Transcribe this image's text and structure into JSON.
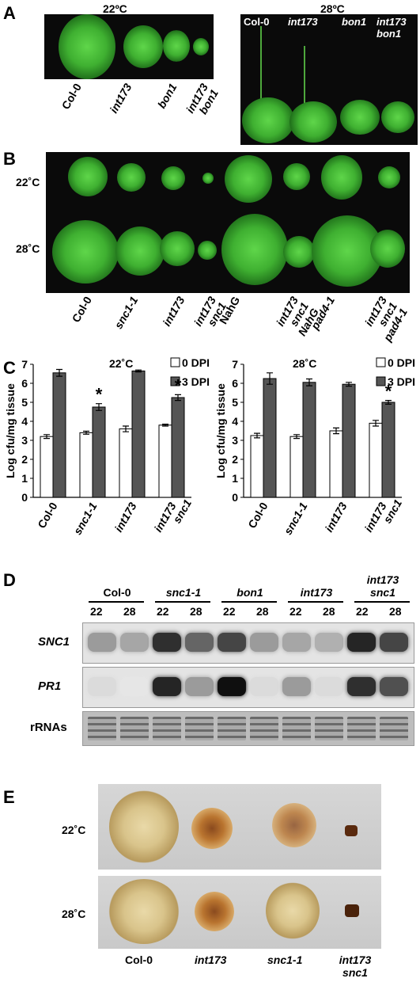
{
  "panels": {
    "A": {
      "label": "A",
      "left_temp": "22ºC",
      "right_temp": "28ºC",
      "left_genotypes": [
        {
          "text": "Col-0",
          "italic": false
        },
        {
          "text": "int173",
          "italic": true
        },
        {
          "text": "bon1",
          "italic": true
        },
        {
          "text": "int173 bon1",
          "italic": true
        }
      ],
      "right_genotypes": [
        {
          "text": "Col-0",
          "italic": false
        },
        {
          "text": "int173",
          "italic": true
        },
        {
          "text": "bon1",
          "italic": true
        },
        {
          "text": "int173 bon1",
          "italic": true
        }
      ]
    },
    "B": {
      "label": "B",
      "row_labels": [
        "22˚C",
        "28˚C"
      ],
      "genotypes": [
        {
          "text": "Col-0",
          "italic": false
        },
        {
          "text": "snc1-1",
          "italic": true
        },
        {
          "text": "int173",
          "italic": true
        },
        {
          "text": "int173 snc1",
          "italic": true
        },
        {
          "text": "NahG",
          "italic": false
        },
        {
          "text": "int173 snc1 NahG",
          "italic": true
        },
        {
          "text": "pad4-1",
          "italic": true
        },
        {
          "text": "int173 snc1 pad4-1",
          "italic": true
        }
      ]
    },
    "C": {
      "label": "C"
    },
    "D": {
      "label": "D",
      "groups": [
        {
          "name": "Col-0",
          "italic": false
        },
        {
          "name": "snc1-1",
          "italic": true
        },
        {
          "name": "bon1",
          "italic": true
        },
        {
          "name": "int173",
          "italic": true
        },
        {
          "name": "int173 snc1",
          "italic": true
        }
      ],
      "temps": [
        "22",
        "28"
      ],
      "rows": [
        {
          "name": "SNC1",
          "italic": true
        },
        {
          "name": "PR1",
          "italic": true
        },
        {
          "name": "rRNAs",
          "italic": false
        }
      ]
    },
    "E": {
      "label": "E",
      "row_labels": [
        "22˚C",
        "28˚C"
      ],
      "genotypes": [
        {
          "text": "Col-0",
          "italic": false
        },
        {
          "text": "int173",
          "italic": true
        },
        {
          "text": "snc1-1",
          "italic": true
        },
        {
          "text": "int173 snc1",
          "italic": true
        }
      ]
    }
  },
  "chart_data": [
    {
      "type": "bar",
      "title": "22˚C",
      "ylabel": "Log cfu/mg tissue",
      "ylim": [
        0,
        7
      ],
      "yticks": [
        "0",
        "1",
        "2",
        "3",
        "4",
        "5",
        "6",
        "7"
      ],
      "legend_position": "top-right",
      "categories": [
        "Col-0",
        "snc1-1",
        "int173",
        "int173 snc1"
      ],
      "series": [
        {
          "name": "0 DPI",
          "color": "#ffffff",
          "values": [
            3.2,
            3.4,
            3.6,
            3.8
          ],
          "errors": [
            0.1,
            0.08,
            0.15,
            0.05
          ]
        },
        {
          "name": "3 DPI",
          "color": "#555555",
          "values": [
            6.55,
            4.75,
            6.65,
            5.25
          ],
          "errors": [
            0.18,
            0.18,
            0.05,
            0.15
          ]
        }
      ],
      "annotations": [
        {
          "category": "snc1-1",
          "text": "*"
        },
        {
          "category": "int173 snc1",
          "text": "*"
        }
      ]
    },
    {
      "type": "bar",
      "title": "28˚C",
      "ylabel": "Log cfu/mg tissue",
      "ylim": [
        0,
        7
      ],
      "yticks": [
        "0",
        "1",
        "2",
        "3",
        "4",
        "5",
        "6",
        "7"
      ],
      "legend_position": "top-right",
      "categories": [
        "Col-0",
        "snc1-1",
        "int173",
        "int173 snc1"
      ],
      "series": [
        {
          "name": "0 DPI",
          "color": "#ffffff",
          "values": [
            3.25,
            3.2,
            3.5,
            3.9
          ],
          "errors": [
            0.12,
            0.1,
            0.15,
            0.15
          ]
        },
        {
          "name": "3 DPI",
          "color": "#555555",
          "values": [
            6.25,
            6.05,
            5.95,
            5.0
          ],
          "errors": [
            0.3,
            0.18,
            0.1,
            0.1
          ]
        }
      ],
      "annotations": [
        {
          "category": "int173 snc1",
          "text": "*"
        }
      ]
    }
  ]
}
